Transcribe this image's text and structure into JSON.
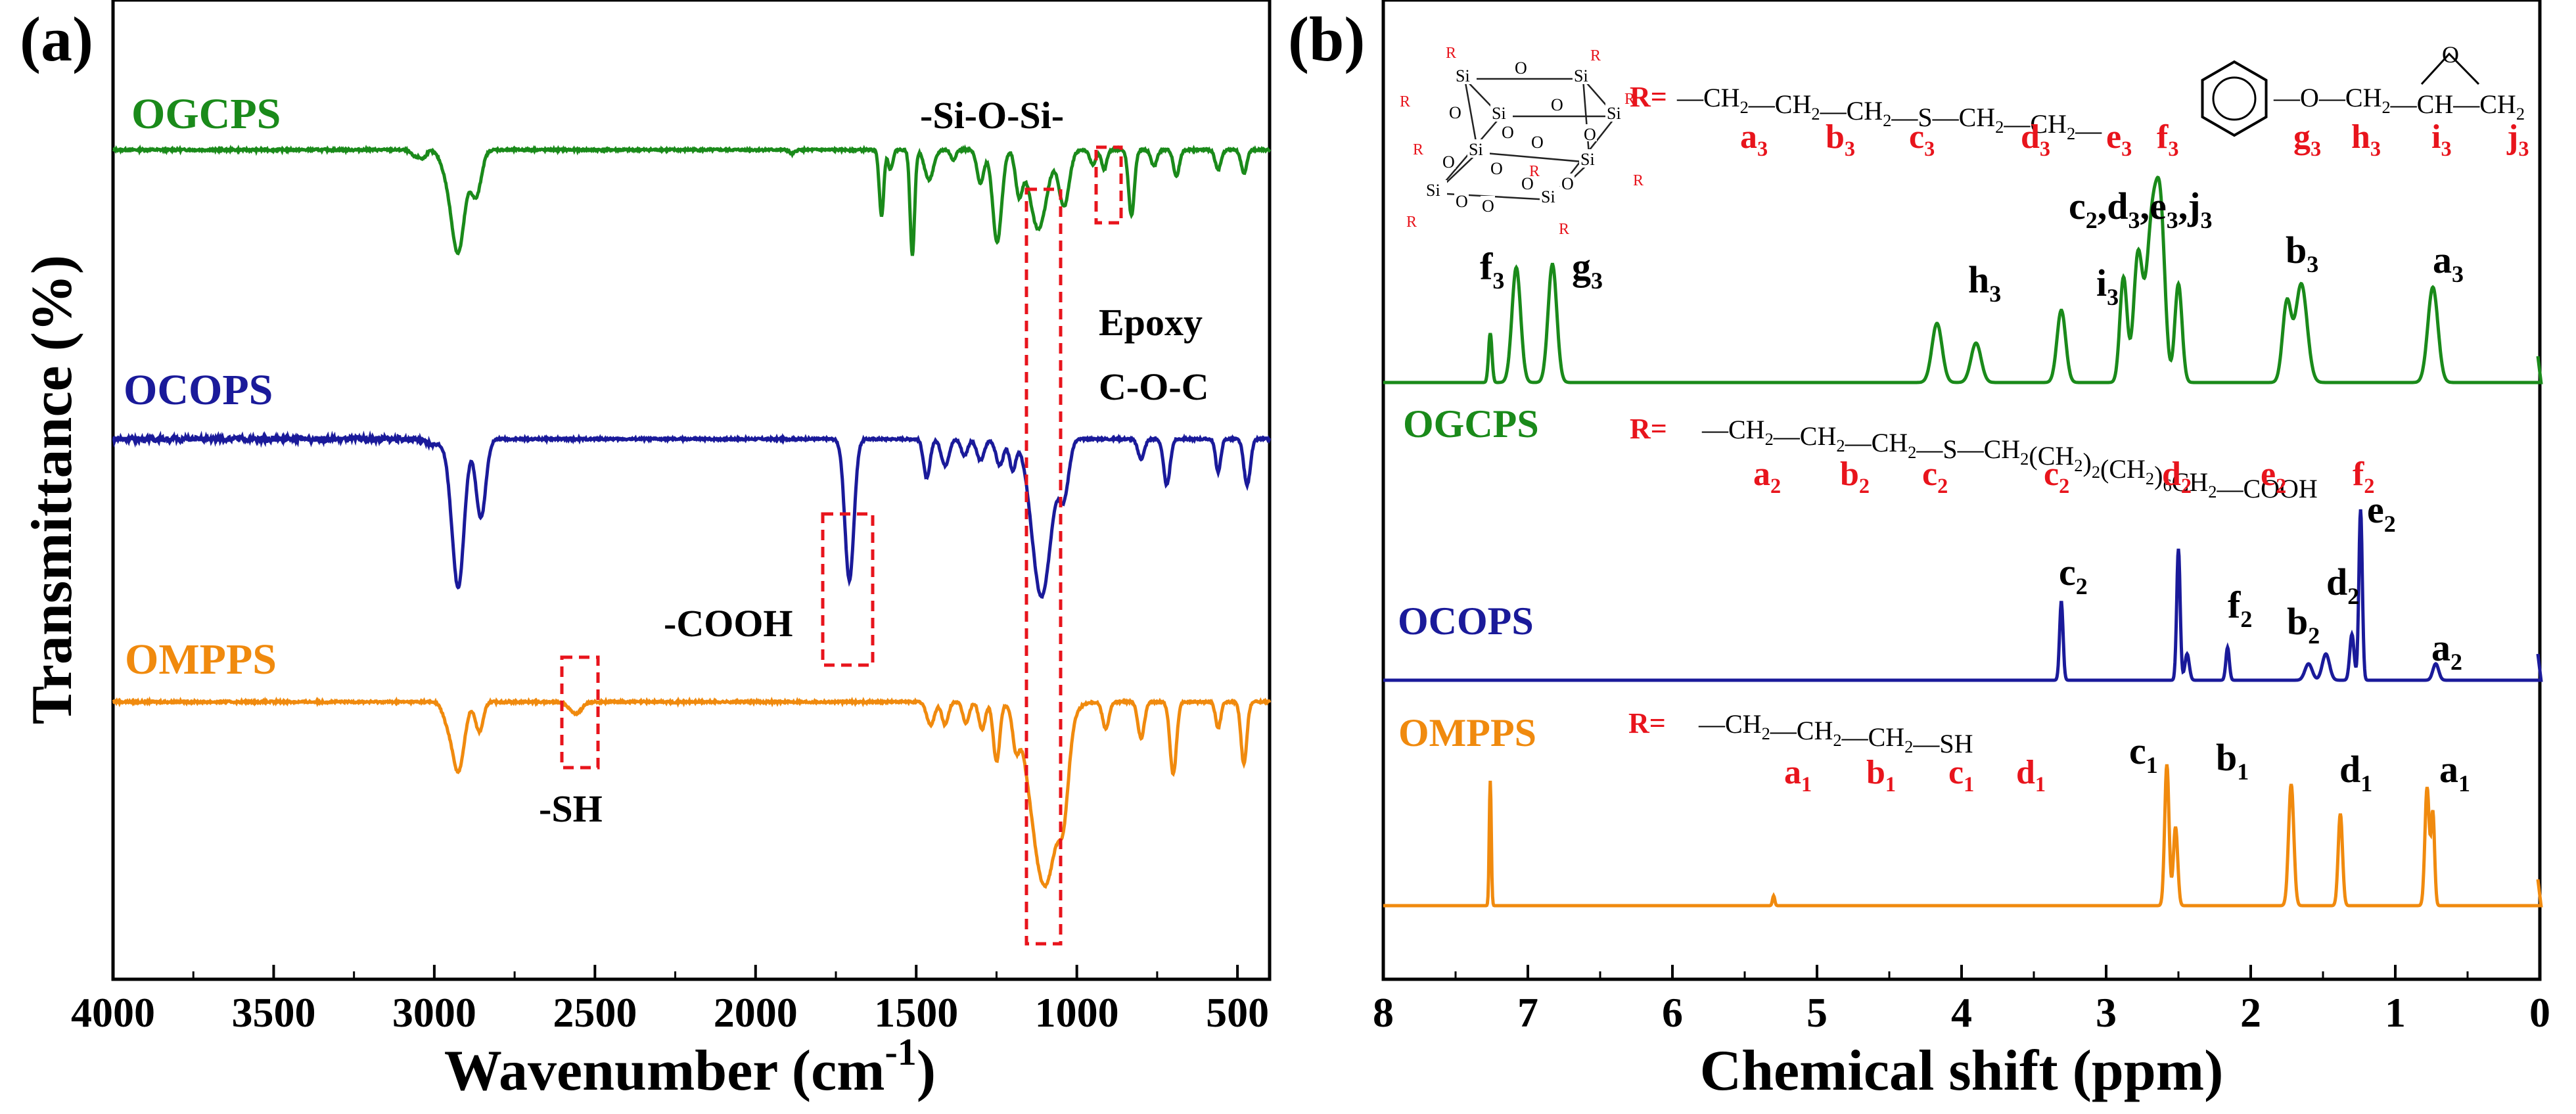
{
  "chart_data": [
    {
      "type": "line",
      "panel_label": "(a)",
      "title": "",
      "xlabel": "Wavenumber (cm-1)",
      "xlabel_main": "Wavenumber (cm",
      "xlabel_sup": "-1",
      "xlabel_close": ")",
      "ylabel": "Transmittance (%)",
      "xlim": [
        4000,
        400
      ],
      "xticks": [
        4000,
        3500,
        3000,
        2500,
        2000,
        1500,
        1000,
        500
      ],
      "xtick_labels": [
        "4000",
        "3500",
        "3000",
        "2500",
        "2000",
        "1500",
        "1000",
        "500"
      ],
      "y_units": "arbitrary, offset stacked",
      "series": [
        {
          "name": "OGCPS",
          "color": "#1a8a1a",
          "offset": 2.0,
          "baseline": 0,
          "peaks": [
            [
              3060,
              -10,
              12
            ],
            [
              3035,
              -12,
              10
            ],
            [
              2960,
              -30,
              20
            ],
            [
              2925,
              -150,
              20
            ],
            [
              2870,
              -70,
              16
            ],
            [
              1886,
              -6,
              8
            ],
            [
              1608,
              -100,
              7
            ],
            [
              1580,
              -30,
              7
            ],
            [
              1512,
              -160,
              7
            ],
            [
              1460,
              -45,
              14
            ],
            [
              1385,
              -15,
              8
            ],
            [
              1300,
              -50,
              11
            ],
            [
              1248,
              -140,
              14
            ],
            [
              1180,
              -65,
              11
            ],
            [
              1120,
              -120,
              26
            ],
            [
              1040,
              -85,
              16
            ],
            [
              950,
              -22,
              10
            ],
            [
              915,
              -30,
              8
            ],
            [
              830,
              -100,
              9
            ],
            [
              760,
              -25,
              9
            ],
            [
              690,
              -40,
              9
            ],
            [
              560,
              -30,
              9
            ],
            [
              480,
              -35,
              9
            ]
          ]
        },
        {
          "name": "OCOPS",
          "color": "#1a1a9a",
          "offset": 1.0,
          "baseline": 0,
          "peaks": [
            [
              3000,
              -8,
              30
            ],
            [
              2950,
              -20,
              15
            ],
            [
              2925,
              -220,
              18
            ],
            [
              2855,
              -120,
              15
            ],
            [
              1708,
              -215,
              14
            ],
            [
              1467,
              -60,
              10
            ],
            [
              1410,
              -40,
              12
            ],
            [
              1350,
              -25,
              10
            ],
            [
              1300,
              -32,
              12
            ],
            [
              1240,
              -40,
              12
            ],
            [
              1200,
              -45,
              10
            ],
            [
              1110,
              -240,
              30
            ],
            [
              1040,
              -80,
              15
            ],
            [
              800,
              -30,
              10
            ],
            [
              720,
              -70,
              10
            ],
            [
              560,
              -50,
              8
            ],
            [
              470,
              -70,
              10
            ]
          ]
        },
        {
          "name": "OMPPS",
          "color": "#f08a0e",
          "offset": 0.0,
          "baseline": 0,
          "peaks": [
            [
              2960,
              -25,
              15
            ],
            [
              2925,
              -105,
              18
            ],
            [
              2860,
              -45,
              12
            ],
            [
              2560,
              -18,
              18
            ],
            [
              1455,
              -35,
              12
            ],
            [
              1410,
              -35,
              10
            ],
            [
              1345,
              -32,
              10
            ],
            [
              1295,
              -42,
              10
            ],
            [
              1250,
              -90,
              10
            ],
            [
              1190,
              -50,
              10
            ],
            [
              1100,
              -280,
              42
            ],
            [
              1040,
              -90,
              15
            ],
            [
              910,
              -40,
              10
            ],
            [
              800,
              -55,
              10
            ],
            [
              700,
              -110,
              10
            ],
            [
              560,
              -40,
              8
            ],
            [
              480,
              -95,
              9
            ]
          ]
        }
      ],
      "annotations": [
        "-Si-O-Si-",
        "Epoxy",
        "C-O-C",
        "-COOH",
        "-SH"
      ]
    },
    {
      "type": "line",
      "panel_label": "(b)",
      "title": "",
      "xlabel": "Chemical shift (ppm)",
      "ylabel": "",
      "xlim": [
        8,
        0
      ],
      "xticks": [
        8,
        7,
        6,
        5,
        4,
        3,
        2,
        1,
        0
      ],
      "xtick_labels": [
        "8",
        "7",
        "6",
        "5",
        "4",
        "3",
        "2",
        "1",
        "0"
      ],
      "y_units": "arbitrary, offset stacked",
      "series": [
        {
          "name": "OGCPS",
          "color": "#1a8a1a",
          "offset": 2.0,
          "peaks": [
            [
              7.26,
              -75,
              0.012
            ],
            [
              7.08,
              -175,
              0.03
            ],
            [
              6.83,
              -180,
              0.03
            ],
            [
              4.17,
              -90,
              0.035
            ],
            [
              3.9,
              -60,
              0.035
            ],
            [
              3.31,
              -110,
              0.03
            ],
            [
              2.88,
              -160,
              0.025
            ],
            [
              2.78,
              -190,
              0.03
            ],
            [
              2.68,
              -250,
              0.04
            ],
            [
              2.62,
              -200,
              0.03
            ],
            [
              2.5,
              -150,
              0.025
            ],
            [
              1.75,
              -120,
              0.03
            ],
            [
              1.65,
              -150,
              0.04
            ],
            [
              0.74,
              -145,
              0.035
            ]
          ],
          "labels": [
            "f3",
            "g3",
            "h3",
            "i3",
            "c2,d3,e3,j3",
            "b3",
            "a3"
          ]
        },
        {
          "name": "OCOPS",
          "color": "#1a1a9a",
          "offset": 1.0,
          "peaks": [
            [
              3.31,
              -120,
              0.012
            ],
            [
              2.5,
              -200,
              0.012
            ],
            [
              2.44,
              -40,
              0.015
            ],
            [
              2.16,
              -50,
              0.012
            ],
            [
              1.6,
              -25,
              0.025
            ],
            [
              1.48,
              -40,
              0.025
            ],
            [
              1.3,
              -70,
              0.015
            ],
            [
              1.24,
              -260,
              0.012
            ],
            [
              0.72,
              -25,
              0.02
            ]
          ],
          "labels": [
            "c2",
            "f2",
            "b2",
            "d2",
            "e2",
            "a2"
          ]
        },
        {
          "name": "OMPPS",
          "color": "#f08a0e",
          "offset": 0.0,
          "peaks": [
            [
              7.26,
              -190,
              0.007
            ],
            [
              5.3,
              -15,
              0.008
            ],
            [
              2.58,
              -215,
              0.015
            ],
            [
              2.52,
              -120,
              0.015
            ],
            [
              1.72,
              -185,
              0.018
            ],
            [
              1.38,
              -140,
              0.015
            ],
            [
              0.78,
              -180,
              0.015
            ],
            [
              0.74,
              -140,
              0.012
            ]
          ],
          "labels": [
            "c1",
            "b1",
            "d1",
            "a1"
          ]
        }
      ],
      "structures": {
        "OGCPS": {
          "prefix": "R=",
          "chain": "—CH2—CH2—CH2—S—CH2—CH2—⟨C6H4⟩—O—CH2—CH—CH2 (epoxide)",
          "labels": [
            "a3",
            "b3",
            "c3",
            "d3",
            "e3",
            "f3",
            "g3",
            "h3",
            "i3",
            "j3"
          ]
        },
        "OCOPS": {
          "prefix": "R=",
          "chain": "—CH2—CH2—CH2—S—CH2(CH2)2(CH2)6CH2—COOH",
          "labels": [
            "a2",
            "b2",
            "c2",
            "c2",
            "d2",
            "e2",
            "f2"
          ]
        },
        "OMPPS": {
          "prefix": "R=",
          "chain": "—CH2—CH2—CH2—SH",
          "labels": [
            "a1",
            "b1",
            "c1",
            "d1"
          ]
        }
      }
    }
  ],
  "texts": {
    "panel_a": "(a)",
    "panel_b": "(b)",
    "ogcps": "OGCPS",
    "ocops": "OCOPS",
    "omppps": "OMPPS",
    "sios": "-Si-O-Si-",
    "epoxy": "Epoxy",
    "coc": "C-O-C",
    "cooh": "-COOH",
    "sh": "-SH",
    "r_eq": "R=",
    "r_atom": "R",
    "si": "Si",
    "o": "O",
    "ch2": "CH",
    "ch": "CH",
    "sub2": "2",
    "sub6": "6",
    "s": "S",
    "sh_group": "SH",
    "cooh_group": "COOH"
  },
  "colors": {
    "green": "#1a8a1a",
    "blue": "#1a1a9a",
    "orange": "#f08a0e",
    "red": "#e8141c",
    "black": "#000000"
  }
}
